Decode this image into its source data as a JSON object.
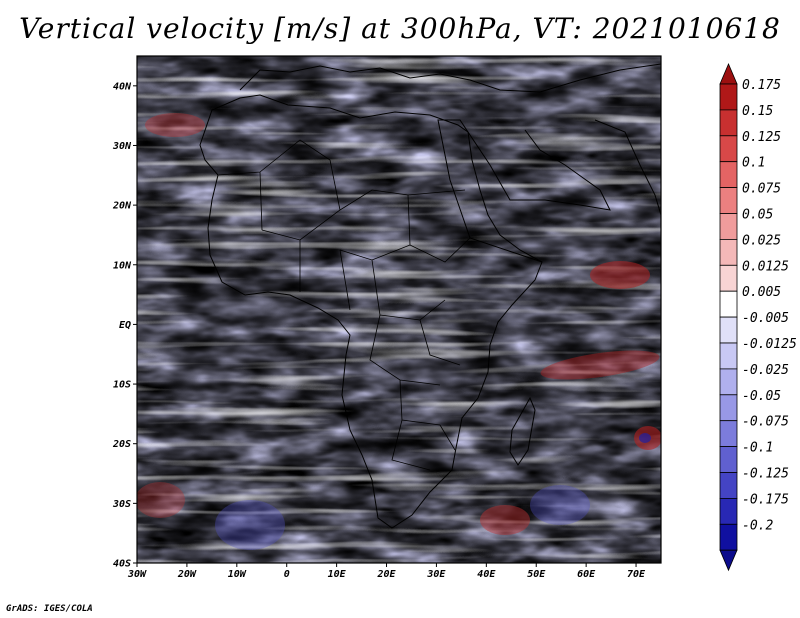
{
  "title": "Vertical velocity [m/s] at 300hPa, VT: 2021010618",
  "credit": "GrADS: IGES/COLA",
  "map": {
    "lon_range": [
      -30,
      75
    ],
    "lat_range": [
      -40,
      45
    ],
    "lat_ticks": [
      "40N",
      "30N",
      "20N",
      "10N",
      "EQ",
      "10S",
      "20S",
      "30S",
      "40S"
    ],
    "lon_ticks": [
      "30W",
      "20W",
      "10W",
      "0",
      "10E",
      "20E",
      "30E",
      "40E",
      "50E",
      "60E",
      "70E"
    ]
  },
  "colorbar": {
    "levels": [
      "0.175",
      "0.15",
      "0.125",
      "0.1",
      "0.075",
      "0.05",
      "0.025",
      "0.0125",
      "0.005",
      "-0.005",
      "-0.0125",
      "-0.025",
      "-0.05",
      "-0.075",
      "-0.1",
      "-0.125",
      "-0.175",
      "-0.2"
    ],
    "colors": [
      "#b01818",
      "#c83030",
      "#d84848",
      "#e46464",
      "#ec8080",
      "#f09c9c",
      "#f4b8b8",
      "#f8d4d4",
      "#ffffff",
      "#e0e0f8",
      "#c8c8f4",
      "#b0b0ee",
      "#9898e6",
      "#7c7cdc",
      "#6060d0",
      "#4444c4",
      "#2828b4",
      "#1010a0"
    ],
    "top_cap_color": "#9c1010",
    "bottom_cap_color": "#0c0c8c"
  }
}
